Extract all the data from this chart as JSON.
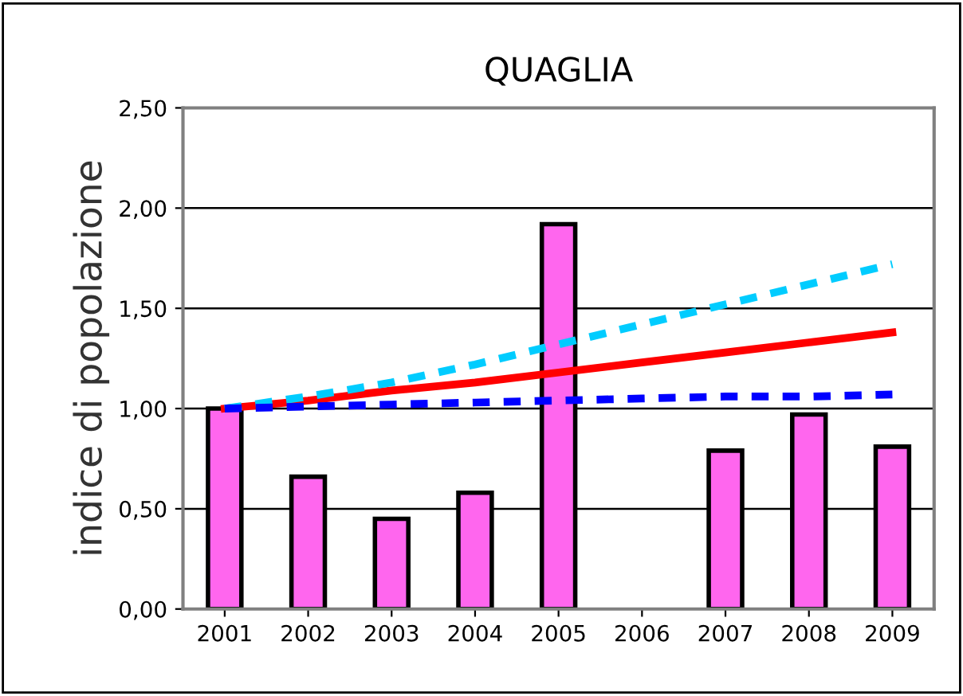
{
  "chart_data": {
    "type": "bar",
    "title": "QUAGLIA",
    "ylabel": "indice di popolazione",
    "categories": [
      "2001",
      "2002",
      "2003",
      "2004",
      "2005",
      "2006",
      "2007",
      "2008",
      "2009"
    ],
    "series": [
      {
        "color": "#ff66ee",
        "values": [
          1.0,
          0.66,
          0.45,
          0.58,
          1.92,
          null,
          0.79,
          0.97,
          0.81
        ]
      },
      {
        "type": "line",
        "color": "#ff0000",
        "line_style": "solid",
        "values": [
          1.0,
          1.04,
          1.09,
          1.13,
          1.18,
          1.23,
          1.28,
          1.33,
          1.38
        ]
      },
      {
        "type": "line",
        "color": "#00ccff",
        "line_style": "dashed",
        "values": [
          1.0,
          1.06,
          1.13,
          1.22,
          1.32,
          1.42,
          1.52,
          1.62,
          1.72
        ]
      },
      {
        "type": "line",
        "color": "#0000ff",
        "line_style": "dashed",
        "values": [
          1.0,
          1.01,
          1.02,
          1.03,
          1.04,
          1.05,
          1.06,
          1.06,
          1.07
        ]
      }
    ],
    "ylim": [
      0,
      2.5
    ],
    "yticks": [
      {
        "value": 0,
        "label": "0,00"
      },
      {
        "value": 0.5,
        "label": "0,50"
      },
      {
        "value": 1.0,
        "label": "1,00"
      },
      {
        "value": 1.5,
        "label": "1,50"
      },
      {
        "value": 2.0,
        "label": "2,00"
      },
      {
        "value": 2.5,
        "label": "2,50"
      }
    ],
    "grid": "y",
    "legend": false
  }
}
